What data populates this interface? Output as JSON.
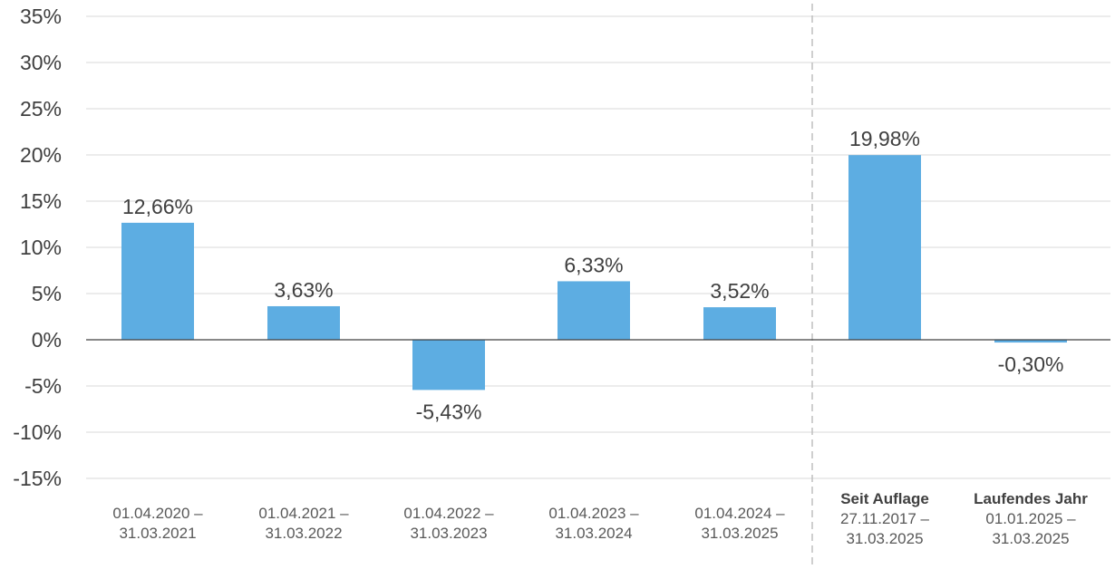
{
  "chart_data": {
    "type": "bar",
    "ylim": [
      -15,
      35
    ],
    "y_ticks": [
      "35%",
      "30%",
      "25%",
      "20%",
      "15%",
      "10%",
      "5%",
      "0%",
      "-5%",
      "-10%",
      "-15%"
    ],
    "grid": true,
    "bar_color": "#5DADE2",
    "categories": [
      {
        "lines": [
          "01.04.2020 –",
          "31.03.2021"
        ]
      },
      {
        "lines": [
          "01.04.2021 –",
          "31.03.2022"
        ]
      },
      {
        "lines": [
          "01.04.2022 –",
          "31.03.2023"
        ]
      },
      {
        "lines": [
          "01.04.2023 –",
          "31.03.2024"
        ]
      },
      {
        "lines": [
          "01.04.2024 –",
          "31.03.2025"
        ]
      },
      {
        "lines": [
          "Seit Auflage",
          "27.11.2017 –",
          "31.03.2025"
        ]
      },
      {
        "lines": [
          "Laufendes Jahr",
          "01.01.2025 –",
          "31.03.2025"
        ]
      }
    ],
    "values": [
      12.66,
      3.63,
      -5.43,
      6.33,
      3.52,
      19.98,
      -0.3
    ],
    "data_labels": [
      "12,66%",
      "3,63%",
      "-5,43%",
      "6,33%",
      "3,52%",
      "19,98%",
      "-0,30%"
    ],
    "separator_after_index": 4
  }
}
